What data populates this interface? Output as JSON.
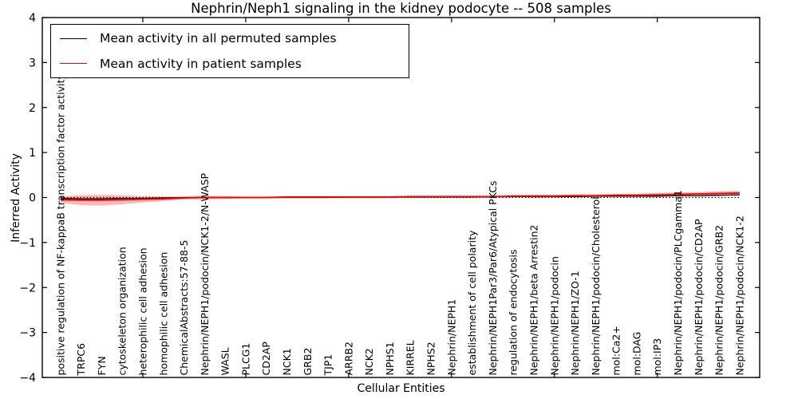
{
  "figure": {
    "title": "Nephrin/Neph1 signaling in the kidney podocyte -- 508 samples",
    "xlabel": "Cellular Entities",
    "ylabel": "Inferred Activity"
  },
  "legend": {
    "entries": [
      {
        "label": "Mean activity in all permuted samples",
        "color": "#000000"
      },
      {
        "label": "Mean activity in patient samples",
        "color": "#ff0000"
      }
    ],
    "position": "upper left"
  },
  "chart_data": {
    "type": "line",
    "title": "Nephrin/Neph1 signaling in the kidney podocyte -- 508 samples",
    "xlabel": "Cellular Entities",
    "ylabel": "Inferred Activity",
    "ylim": [
      -4,
      4
    ],
    "ytick_labels": [
      "4",
      "3",
      "2",
      "1",
      "0",
      "−1",
      "−2",
      "−3",
      "−4"
    ],
    "ytick_values": [
      4,
      3,
      2,
      1,
      0,
      -1,
      -2,
      -3,
      -4
    ],
    "xtick_values": [
      5,
      10,
      15,
      20,
      25,
      30
    ],
    "grid": false,
    "legend_position": "upper left",
    "zero_line": {
      "y": 0,
      "style": "dotted",
      "color": "#000000"
    },
    "categories": [
      "positive regulation of NF-kappaB transcription factor activity",
      "TRPC6",
      "FYN",
      "cytoskeleton organization",
      "heterophilic cell adhesion",
      "homophilic cell adhesion",
      "ChemicalAbstracts:57-88-5",
      "Nephrin/NEPH1/podocin/NCK1-2/N-WASP",
      "WASL",
      "PLCG1",
      "CD2AP",
      "NCK1",
      "GRB2",
      "TJP1",
      "ARRB2",
      "NCK2",
      "NPHS1",
      "KIRREL",
      "NPHS2",
      "Nephrin/NEPH1",
      "establishment of cell polarity",
      "Nephrin/NEPH1Par3/Par6/Atypical PKCs",
      "regulation of endocytosis",
      "Nephrin/NEPH1/beta Arrestin2",
      "Nephrin/NEPH1/podocin",
      "Nephrin/NEPH1/ZO-1",
      "Nephrin/NEPH1/podocin/Cholesterol",
      "mol:Ca2+",
      "mol:DAG",
      "mol:IP3",
      "Nephrin/NEPH1/podocin/PLCgamma1",
      "Nephrin/NEPH1/podocin/CD2AP",
      "Nephrin/NEPH1/podocin/GRB2",
      "Nephrin/NEPH1/podocin/NCK1-2"
    ],
    "series": [
      {
        "name": "Mean activity in all permuted samples",
        "color": "#000000",
        "values": [
          -0.02,
          -0.03,
          -0.03,
          -0.02,
          -0.02,
          -0.01,
          0.0,
          0.0,
          0.0,
          0.0,
          0.0,
          0.0,
          0.0,
          0.0,
          0.01,
          0.01,
          0.01,
          0.01,
          0.01,
          0.01,
          0.01,
          0.02,
          0.02,
          0.02,
          0.02,
          0.02,
          0.03,
          0.03,
          0.03,
          0.03,
          0.04,
          0.04,
          0.05,
          0.06
        ]
      },
      {
        "name": "Mean activity in patient samples",
        "color": "#ff0000",
        "values": [
          -0.05,
          -0.06,
          -0.06,
          -0.05,
          -0.04,
          -0.03,
          -0.01,
          0.0,
          0.0,
          0.0,
          0.0,
          0.01,
          0.01,
          0.01,
          0.01,
          0.01,
          0.01,
          0.02,
          0.02,
          0.02,
          0.02,
          0.02,
          0.03,
          0.03,
          0.03,
          0.04,
          0.04,
          0.05,
          0.05,
          0.06,
          0.07,
          0.08,
          0.09,
          0.1
        ]
      }
    ],
    "band": {
      "series": "Mean activity in patient samples",
      "color": "#ff0000",
      "opacity": 0.28,
      "upper": [
        0.02,
        0.05,
        0.06,
        0.05,
        0.03,
        0.02,
        0.02,
        0.04,
        0.03,
        0.02,
        0.02,
        0.03,
        0.03,
        0.03,
        0.03,
        0.03,
        0.03,
        0.04,
        0.04,
        0.04,
        0.04,
        0.04,
        0.05,
        0.06,
        0.06,
        0.07,
        0.07,
        0.08,
        0.08,
        0.1,
        0.11,
        0.12,
        0.14,
        0.15
      ],
      "lower": [
        -0.12,
        -0.17,
        -0.18,
        -0.15,
        -0.11,
        -0.08,
        -0.04,
        -0.04,
        -0.03,
        -0.02,
        -0.02,
        -0.01,
        -0.01,
        -0.01,
        -0.01,
        -0.01,
        -0.01,
        0.0,
        0.0,
        0.0,
        0.0,
        0.0,
        0.01,
        0.0,
        0.0,
        0.01,
        0.01,
        0.02,
        0.02,
        0.02,
        0.03,
        0.04,
        0.04,
        0.05
      ]
    }
  }
}
